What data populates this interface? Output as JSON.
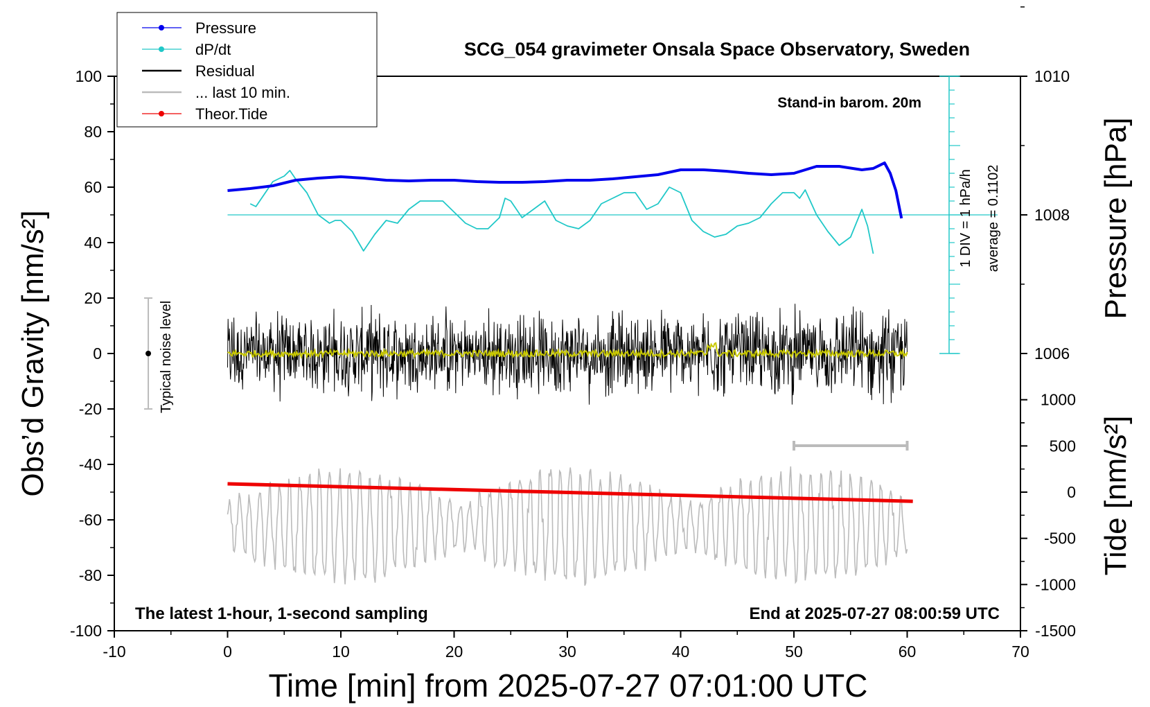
{
  "chart_data": {
    "type": "line",
    "title": "SCG_054 gravimeter Onsala Space Observatory, Sweden",
    "xlabel": "Time [min] from 2025-07-27 07:01:00 UTC",
    "ylabel_left": "Obs’d Gravity [nm/s²]",
    "ylabel_right_top": "Pressure [hPa]",
    "ylabel_right_bottom": "Tide [nm/s²]",
    "xlim": [
      -10,
      70
    ],
    "ylim": [
      -100,
      100
    ],
    "pressure_ylim": [
      1004,
      1012
    ],
    "tide_ylim": [
      -1500,
      1000
    ],
    "xticks": [
      -10,
      0,
      10,
      20,
      30,
      40,
      50,
      60,
      70
    ],
    "yticks": [
      -100,
      -80,
      -60,
      -40,
      -20,
      0,
      20,
      40,
      60,
      80,
      100
    ],
    "pressure_ticks": [
      1006,
      1008,
      1010
    ],
    "tide_ticks": [
      1000,
      500,
      0,
      -500,
      -1000,
      -1500
    ],
    "legend_position": "top-left",
    "legend": [
      {
        "label": "Pressure",
        "color": "#0000ee"
      },
      {
        "label": "dP/dt",
        "color": "#20c8c8"
      },
      {
        "label": "Residual",
        "color": "#000000"
      },
      {
        "label": "... last 10 min.",
        "color": "#bbbbbb"
      },
      {
        "label": "Theor.Tide",
        "color": "#ee0000"
      }
    ],
    "annotations": {
      "barometer": "Stand-in barom. 20m",
      "div_scale": "1 DIV = 1 hPa/h",
      "average": "average = 0.1102",
      "noise": "Typical noise level",
      "sampling": "The latest 1-hour, 1-second sampling",
      "end_time": "End at 2025-07-27 08:00:59 UTC"
    },
    "noise_bar": {
      "x": -7,
      "y_min": -20,
      "y_max": 20
    },
    "last10_marker": {
      "x_start": 50,
      "x_end": 60
    },
    "series": [
      {
        "name": "Pressure",
        "unit": "hPa",
        "color": "#0000ee",
        "x": [
          0,
          2,
          4,
          6,
          8,
          10,
          12,
          14,
          16,
          18,
          20,
          22,
          24,
          26,
          28,
          30,
          32,
          34,
          36,
          38,
          40,
          42,
          44,
          46,
          48,
          50,
          52,
          54,
          56,
          57,
          58,
          58.5,
          59,
          59.5
        ],
        "values": [
          1008.35,
          1008.38,
          1008.42,
          1008.5,
          1008.53,
          1008.55,
          1008.53,
          1008.5,
          1008.49,
          1008.5,
          1008.5,
          1008.48,
          1008.47,
          1008.47,
          1008.48,
          1008.5,
          1008.5,
          1008.52,
          1008.55,
          1008.58,
          1008.65,
          1008.65,
          1008.63,
          1008.6,
          1008.58,
          1008.6,
          1008.7,
          1008.7,
          1008.65,
          1008.67,
          1008.75,
          1008.6,
          1008.35,
          1007.95
        ]
      },
      {
        "name": "dP/dt",
        "color": "#20c8c8",
        "x": [
          2,
          2.5,
          3,
          4,
          5,
          5.5,
          6,
          7,
          8,
          9,
          9.5,
          10,
          11,
          12,
          13,
          14,
          15,
          16,
          17,
          18,
          19,
          20,
          21,
          22,
          23,
          24,
          24.5,
          25,
          26,
          27,
          28,
          29,
          30,
          31,
          32,
          33,
          34,
          35,
          36,
          37,
          38,
          39,
          40,
          41,
          42,
          43,
          44,
          45,
          46,
          47,
          48,
          49,
          50,
          50.5,
          51,
          52,
          53,
          54,
          55,
          56,
          56.5,
          57
        ],
        "values": [
          54,
          53,
          56,
          62,
          64,
          66,
          63,
          58,
          50,
          47,
          48,
          48,
          44,
          37,
          43,
          48,
          47,
          52,
          55,
          55,
          55,
          51,
          47,
          45,
          45,
          49,
          56,
          55,
          49,
          52,
          55,
          48,
          46,
          45,
          48,
          54,
          56,
          58,
          58,
          52,
          54,
          60,
          58,
          48,
          44,
          42,
          43,
          46,
          47,
          49,
          54,
          58,
          58,
          56,
          59,
          50,
          44,
          39,
          42,
          52,
          46,
          36
        ]
      },
      {
        "name": "Residual",
        "color": "#000000",
        "x_range": [
          0,
          60
        ],
        "envelope": [
          -19,
          19
        ]
      },
      {
        "name": "Theor.Tide",
        "color": "#ee0000",
        "x": [
          0,
          60.5
        ],
        "values": [
          -47,
          -53.3
        ]
      },
      {
        "name": "... last 10 min.",
        "color": "#bbbbbb",
        "x_range": [
          0,
          60
        ],
        "center": -62,
        "envelope": [
          -80,
          -44
        ]
      }
    ]
  }
}
